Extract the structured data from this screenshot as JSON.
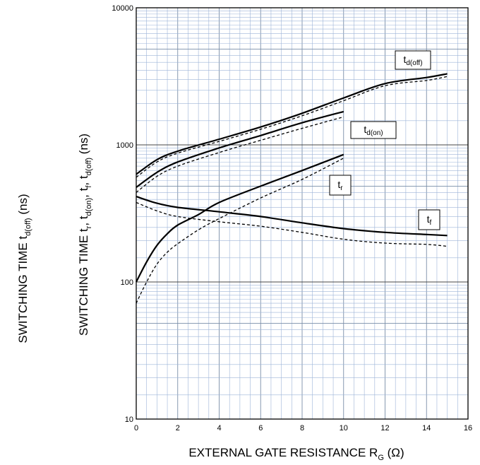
{
  "chart_data": {
    "type": "line",
    "scale": {
      "x": "linear",
      "y": "log"
    },
    "xlim": [
      0,
      16
    ],
    "ylim": [
      10,
      10000
    ],
    "grid": true,
    "x_ticks": [
      "0",
      "2",
      "4",
      "6",
      "8",
      "10",
      "12",
      "14",
      "16"
    ],
    "y_ticks": [
      "10",
      "100",
      "1000",
      "10000"
    ],
    "xlabel": {
      "main": "EXTERNAL GATE RESISTANCE   R",
      "sub": "G",
      "unit": "   (Ω)"
    },
    "ylabel_left": {
      "main": "SWITCHING TIME   t",
      "sub": "d(off)",
      "unit": "   (ns)"
    },
    "ylabel_right": {
      "main": "SWITCHING TIME   t",
      "parts": [
        {
          "sub": "r",
          "text": ", t"
        },
        {
          "sub": "d(on)",
          "text": ", t"
        },
        {
          "sub": "f",
          "text": ", t"
        },
        {
          "sub": "d(off)",
          "text": "    (ns)"
        }
      ]
    },
    "callouts": [
      {
        "main": "t",
        "sub": "d(off)"
      },
      {
        "main": "t",
        "sub": "d(on)"
      },
      {
        "main": "t",
        "sub": "r"
      },
      {
        "main": "t",
        "sub": "f"
      }
    ],
    "series": [
      {
        "style": "solid",
        "x": [
          0,
          1,
          2,
          4,
          6,
          8,
          10,
          12,
          14,
          15
        ],
        "y": [
          610,
          780,
          900,
          1100,
          1350,
          1700,
          2200,
          2800,
          3100,
          3300
        ]
      },
      {
        "style": "dashed",
        "x": [
          0,
          1,
          2,
          4,
          6,
          8,
          10,
          12,
          14,
          15
        ],
        "y": [
          580,
          750,
          870,
          1060,
          1300,
          1630,
          2100,
          2700,
          2950,
          3150
        ]
      },
      {
        "style": "solid",
        "x": [
          0,
          1,
          2,
          4,
          6,
          8,
          10
        ],
        "y": [
          490,
          630,
          750,
          950,
          1170,
          1450,
          1750
        ]
      },
      {
        "style": "dashed",
        "x": [
          0,
          1,
          2,
          4,
          6,
          8,
          10
        ],
        "y": [
          450,
          590,
          700,
          880,
          1080,
          1320,
          1600
        ]
      },
      {
        "style": "solid",
        "x": [
          0,
          0.5,
          1,
          1.5,
          2,
          3,
          4,
          6,
          8,
          10
        ],
        "y": [
          100,
          140,
          185,
          225,
          260,
          310,
          380,
          500,
          650,
          850
        ]
      },
      {
        "style": "dashed",
        "x": [
          0,
          0.5,
          1,
          1.5,
          2,
          3,
          4,
          6,
          8,
          10
        ],
        "y": [
          70,
          100,
          135,
          165,
          190,
          240,
          290,
          410,
          560,
          800
        ]
      },
      {
        "style": "solid",
        "x": [
          0,
          1,
          2,
          4,
          6,
          8,
          10,
          12,
          14,
          15
        ],
        "y": [
          420,
          375,
          350,
          325,
          300,
          270,
          245,
          230,
          222,
          218
        ]
      },
      {
        "style": "dashed",
        "x": [
          0,
          1,
          2,
          4,
          6,
          8,
          10,
          12,
          14,
          15
        ],
        "y": [
          380,
          330,
          300,
          275,
          255,
          230,
          205,
          192,
          188,
          182
        ]
      }
    ]
  }
}
